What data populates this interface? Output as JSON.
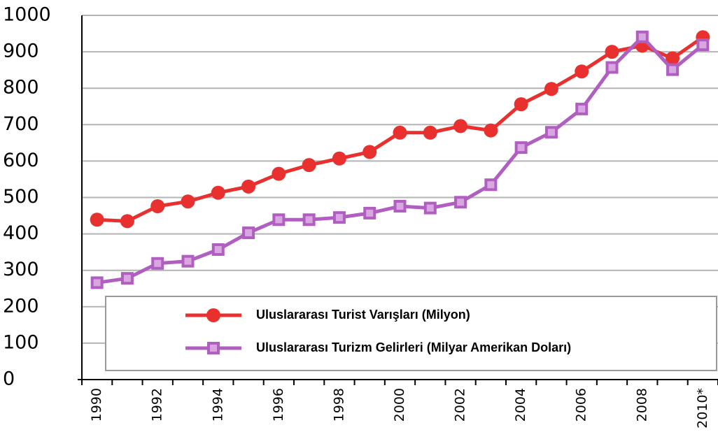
{
  "chart_data": {
    "type": "line",
    "categories": [
      "1990",
      null,
      "1992",
      null,
      "1994",
      null,
      "1996",
      null,
      "1998",
      null,
      "2000",
      null,
      "2002",
      null,
      "2004",
      null,
      "2006",
      null,
      "2008",
      null,
      "2010*"
    ],
    "series": [
      {
        "name": "Uluslararası Turist Varışları (Milyon)",
        "color": "#e8312f",
        "marker": "circle",
        "values": [
          439,
          435,
          476,
          489,
          513,
          530,
          565,
          589,
          607,
          625,
          678,
          678,
          696,
          684,
          756,
          798,
          846,
          900,
          917,
          882,
          940
        ]
      },
      {
        "name": "Uluslararası Turizm Gelirleri (Milyar Amerikan Doları)",
        "color": "#b05fc0",
        "marker": "square",
        "values": [
          266,
          278,
          319,
          325,
          357,
          403,
          439,
          439,
          445,
          457,
          476,
          471,
          487,
          535,
          637,
          679,
          743,
          857,
          941,
          851,
          919
        ]
      }
    ],
    "ylim": [
      0,
      1000
    ],
    "yticks": [
      0,
      100,
      200,
      300,
      400,
      500,
      600,
      700,
      800,
      900,
      1000
    ],
    "grid": true
  }
}
